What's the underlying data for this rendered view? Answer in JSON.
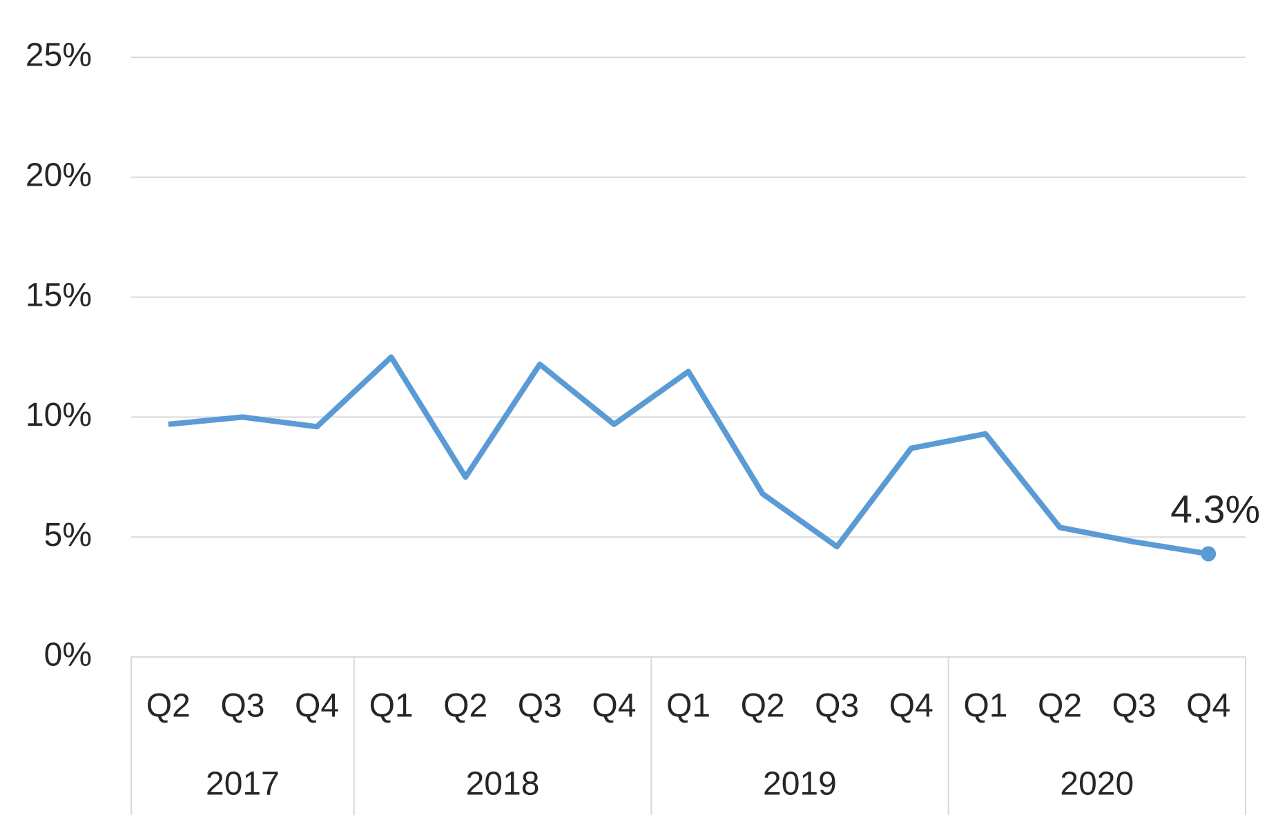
{
  "chart_data": {
    "type": "line",
    "categories": [
      "Q2",
      "Q3",
      "Q4",
      "Q1",
      "Q2",
      "Q3",
      "Q4",
      "Q1",
      "Q2",
      "Q3",
      "Q4",
      "Q1",
      "Q2",
      "Q3",
      "Q4"
    ],
    "years": [
      "2017",
      null,
      null,
      "2018",
      null,
      null,
      null,
      "2019",
      null,
      null,
      null,
      "2020",
      null,
      null,
      null
    ],
    "series": [
      {
        "color": "#5b9bd5",
        "values": [
          9.7,
          10.0,
          9.6,
          12.5,
          7.5,
          12.2,
          9.7,
          11.9,
          6.8,
          4.6,
          8.7,
          9.3,
          5.4,
          4.8,
          4.3
        ],
        "value_labels": [
          null,
          null,
          null,
          null,
          null,
          null,
          null,
          null,
          null,
          null,
          null,
          null,
          null,
          null,
          "4.3%"
        ]
      }
    ],
    "ylim": [
      0,
      25
    ],
    "yticks": [
      {
        "value": 0,
        "label": "0%"
      },
      {
        "value": 5,
        "label": "5%"
      },
      {
        "value": 10,
        "label": "10%"
      },
      {
        "value": 15,
        "label": "15%"
      },
      {
        "value": 20,
        "label": "20%"
      },
      {
        "value": 25,
        "label": "25%"
      }
    ],
    "grid": true
  }
}
